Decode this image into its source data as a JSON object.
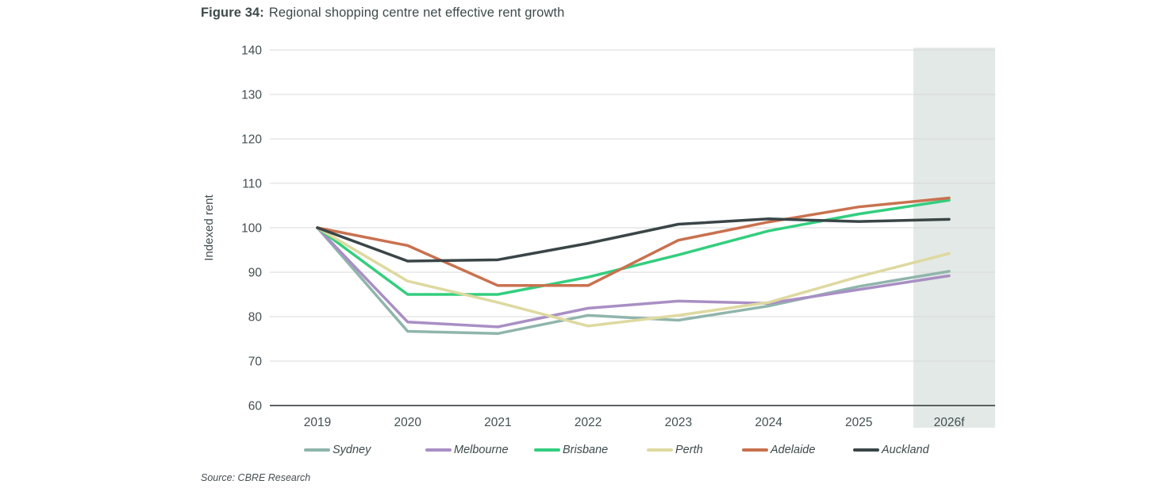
{
  "figure": {
    "label": "Figure 34:",
    "title": "Regional shopping centre net effective rent growth"
  },
  "source": "Source: CBRE Research",
  "chart_data": {
    "type": "line",
    "title": "Regional shopping centre net effective rent growth",
    "xlabel": "",
    "ylabel": "Indexed rent",
    "ylim": [
      60,
      140
    ],
    "ytick_step": 10,
    "grid": true,
    "legend_position": "bottom",
    "categories": [
      "2019",
      "2020",
      "2021",
      "2022",
      "2023",
      "2024",
      "2025",
      "2026f"
    ],
    "forecast_band": {
      "category": "2026f",
      "color": "#E3E9E6"
    },
    "axis_colors": {
      "grid": "#D9D9D9",
      "axis_line": "#5A6163",
      "tick_text": "#434F52"
    },
    "series": [
      {
        "name": "Sydney",
        "color": "#8FB5AC",
        "values": [
          100,
          76.7,
          76.2,
          80.3,
          79.2,
          82.4,
          86.8,
          90.2
        ]
      },
      {
        "name": "Melbourne",
        "color": "#A98FC4",
        "values": [
          100,
          78.8,
          77.7,
          81.9,
          83.5,
          83.0,
          86.1,
          89.2
        ]
      },
      {
        "name": "Brisbane",
        "color": "#33CE7E",
        "values": [
          100,
          85.0,
          85.0,
          88.9,
          93.9,
          99.3,
          103.1,
          106.2
        ]
      },
      {
        "name": "Perth",
        "color": "#DED9A0",
        "values": [
          100,
          88.0,
          83.2,
          77.9,
          80.3,
          83.2,
          89.0,
          94.2
        ]
      },
      {
        "name": "Adelaide",
        "color": "#C9714F",
        "values": [
          100,
          96.0,
          87.0,
          87.0,
          97.2,
          101.3,
          104.7,
          106.7
        ]
      },
      {
        "name": "Auckland",
        "color": "#3A4547",
        "values": [
          100,
          92.5,
          92.8,
          96.5,
          100.8,
          102.0,
          101.4,
          101.9
        ]
      }
    ]
  }
}
